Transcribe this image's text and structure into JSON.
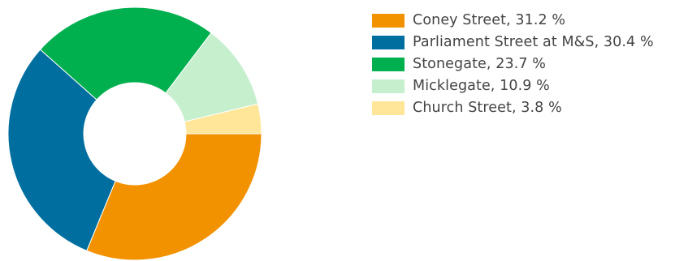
{
  "chart_data": {
    "type": "pie",
    "variant": "donut",
    "legend_position": "right",
    "slices": [
      {
        "label": "Coney Street, 31.2 %",
        "name": "Coney Street",
        "value": 31.2,
        "color": "#f39200"
      },
      {
        "label": "Parliament Street at M&S, 30.4 %",
        "name": "Parliament Street at M&S",
        "value": 30.4,
        "color": "#006fa0"
      },
      {
        "label": "Stonegate, 23.7 %",
        "name": "Stonegate",
        "value": 23.7,
        "color": "#00b04f"
      },
      {
        "label": "Micklegate, 10.9 %",
        "name": "Micklegate",
        "value": 10.9,
        "color": "#c6efce"
      },
      {
        "label": "Church Street, 3.8 %",
        "name": "Church Street",
        "value": 3.8,
        "color": "#ffe699"
      }
    ]
  }
}
